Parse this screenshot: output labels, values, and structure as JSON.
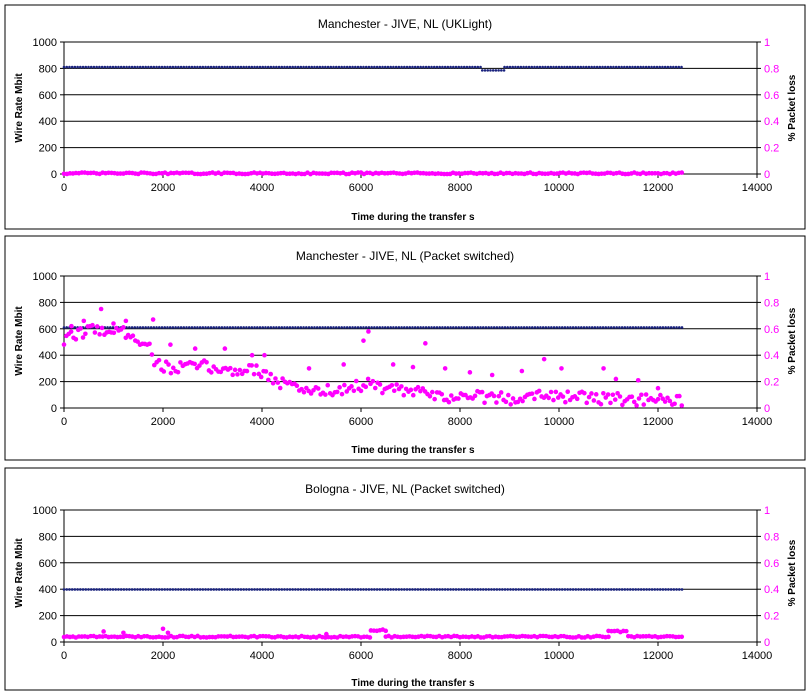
{
  "chart_data": [
    {
      "type": "scatter",
      "title": "Manchester - JIVE, NL (UKLight)",
      "xlabel": "Time during the transfer s",
      "ylabel": "Wire Rate Mbit",
      "y2label": "% Packet loss",
      "xlim": [
        0,
        14000
      ],
      "ylim": [
        0,
        1000
      ],
      "y2lim": [
        0,
        1
      ],
      "xticks": [
        "0",
        "2000",
        "4000",
        "6000",
        "8000",
        "10000",
        "12000",
        "14000"
      ],
      "yticks": [
        "0",
        "200",
        "400",
        "600",
        "800",
        "1000"
      ],
      "y2ticks": [
        "0",
        "0.2",
        "0.4",
        "0.6",
        "0.8",
        "1"
      ],
      "grid": "horizontal",
      "series": [
        {
          "axis": "left",
          "color": "#1a237e",
          "marker": "small-dot",
          "segments": [
            {
              "x_start": 0,
              "x_end": 8450,
              "value": 810
            },
            {
              "x_start": 8450,
              "x_end": 8900,
              "value": 785
            },
            {
              "x_start": 8900,
              "x_end": 12500,
              "value": 810
            }
          ]
        },
        {
          "axis": "right",
          "color": "#ff00ff",
          "marker": "dot",
          "segments": [
            {
              "x_start": 0,
              "x_end": 12500,
              "value": 0.005
            }
          ]
        }
      ]
    },
    {
      "type": "scatter",
      "title": "Manchester - JIVE, NL (Packet switched)",
      "xlabel": "Time during the transfer s",
      "ylabel": "Wire Rate Mbit",
      "y2label": "% Packet loss",
      "xlim": [
        0,
        14000
      ],
      "ylim": [
        0,
        1000
      ],
      "y2lim": [
        0,
        1
      ],
      "xticks": [
        "0",
        "2000",
        "4000",
        "6000",
        "8000",
        "10000",
        "12000",
        "14000"
      ],
      "yticks": [
        "0",
        "200",
        "400",
        "600",
        "800",
        "1000"
      ],
      "y2ticks": [
        "0",
        "0.2",
        "0.4",
        "0.6",
        "0.8",
        "1"
      ],
      "grid": "horizontal",
      "series": [
        {
          "axis": "left",
          "color": "#1a237e",
          "marker": "small-dot",
          "segments": [
            {
              "x_start": 0,
              "x_end": 12500,
              "value": 610
            }
          ]
        },
        {
          "axis": "right",
          "color": "#ff00ff",
          "marker": "dot",
          "trend": [
            [
              0,
              0.5
            ],
            [
              300,
              0.57
            ],
            [
              700,
              0.6
            ],
            [
              1000,
              0.58
            ],
            [
              1400,
              0.56
            ],
            [
              1750,
              0.45
            ],
            [
              1850,
              0.33
            ],
            [
              2200,
              0.3
            ],
            [
              2800,
              0.32
            ],
            [
              3300,
              0.28
            ],
            [
              3900,
              0.3
            ],
            [
              4300,
              0.2
            ],
            [
              4800,
              0.14
            ],
            [
              5400,
              0.13
            ],
            [
              6100,
              0.18
            ],
            [
              6600,
              0.14
            ],
            [
              7100,
              0.12
            ],
            [
              7600,
              0.08
            ],
            [
              8300,
              0.09
            ],
            [
              9000,
              0.07
            ],
            [
              9600,
              0.11
            ],
            [
              10300,
              0.08
            ],
            [
              11000,
              0.07
            ],
            [
              11600,
              0.06
            ],
            [
              12500,
              0.05
            ]
          ],
          "outliers": [
            [
              150,
              0.62
            ],
            [
              400,
              0.66
            ],
            [
              750,
              0.75
            ],
            [
              1000,
              0.64
            ],
            [
              1250,
              0.66
            ],
            [
              1800,
              0.67
            ],
            [
              2150,
              0.48
            ],
            [
              2650,
              0.45
            ],
            [
              3250,
              0.45
            ],
            [
              3800,
              0.4
            ],
            [
              4050,
              0.4
            ],
            [
              4950,
              0.3
            ],
            [
              5650,
              0.33
            ],
            [
              6050,
              0.51
            ],
            [
              6150,
              0.58
            ],
            [
              6650,
              0.33
            ],
            [
              7050,
              0.31
            ],
            [
              7300,
              0.49
            ],
            [
              7700,
              0.3
            ],
            [
              8200,
              0.27
            ],
            [
              8650,
              0.25
            ],
            [
              9250,
              0.28
            ],
            [
              9700,
              0.37
            ],
            [
              10050,
              0.3
            ],
            [
              10900,
              0.3
            ],
            [
              11150,
              0.22
            ],
            [
              11600,
              0.21
            ],
            [
              12000,
              0.15
            ]
          ]
        }
      ]
    },
    {
      "type": "scatter",
      "title": "Bologna - JIVE, NL (Packet switched)",
      "xlabel": "Time during the transfer s",
      "ylabel": "Wire Rate Mbit",
      "y2label": "% Packet loss",
      "xlim": [
        0,
        14000
      ],
      "ylim": [
        0,
        1000
      ],
      "y2lim": [
        0,
        1
      ],
      "xticks": [
        "0",
        "2000",
        "4000",
        "6000",
        "8000",
        "10000",
        "12000",
        "14000"
      ],
      "yticks": [
        "0",
        "200",
        "400",
        "600",
        "800",
        "1000"
      ],
      "y2ticks": [
        "0",
        "0.2",
        "0.4",
        "0.6",
        "0.8",
        "1"
      ],
      "grid": "horizontal",
      "series": [
        {
          "axis": "left",
          "color": "#1a237e",
          "marker": "small-dot",
          "segments": [
            {
              "x_start": 0,
              "x_end": 12500,
              "value": 398
            }
          ]
        },
        {
          "axis": "right",
          "color": "#ff00ff",
          "marker": "dot",
          "segments": [
            {
              "x_start": 0,
              "x_end": 6200,
              "value": 0.04
            },
            {
              "x_start": 6200,
              "x_end": 6500,
              "value": 0.09
            },
            {
              "x_start": 6500,
              "x_end": 11000,
              "value": 0.04
            },
            {
              "x_start": 11000,
              "x_end": 11400,
              "value": 0.08
            },
            {
              "x_start": 11400,
              "x_end": 12500,
              "value": 0.04
            }
          ],
          "outliers": [
            [
              800,
              0.08
            ],
            [
              1200,
              0.07
            ],
            [
              2000,
              0.1
            ],
            [
              2100,
              0.07
            ],
            [
              5300,
              0.06
            ]
          ]
        }
      ]
    }
  ]
}
